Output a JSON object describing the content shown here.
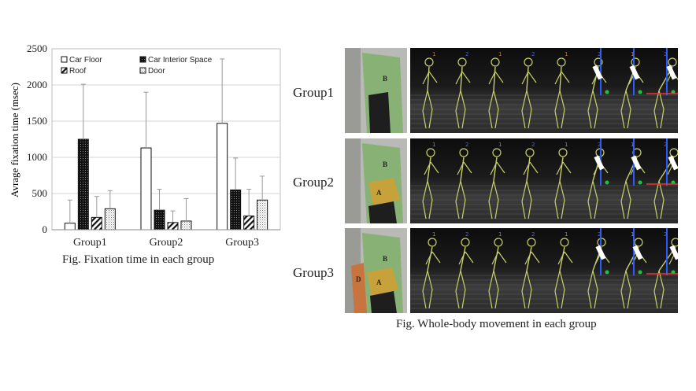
{
  "chart_data": {
    "type": "bar",
    "ylabel": "Avrage fixation time (msec)",
    "ylim": [
      0,
      2500
    ],
    "yticks": [
      0,
      500,
      1000,
      1500,
      2000,
      2500
    ],
    "categories": [
      "Group1",
      "Group2",
      "Group3"
    ],
    "series": [
      {
        "name": "Car Floor",
        "pattern": "white",
        "values": [
          90,
          1130,
          1470
        ],
        "err": [
          320,
          770,
          890
        ]
      },
      {
        "name": "Car Interior Space",
        "pattern": "dots",
        "values": [
          1250,
          270,
          550
        ],
        "err": [
          760,
          290,
          440
        ]
      },
      {
        "name": "Roof",
        "pattern": "diag",
        "values": [
          170,
          100,
          190
        ],
        "err": [
          290,
          160,
          370
        ]
      },
      {
        "name": "Door",
        "pattern": "light-dots",
        "values": [
          290,
          120,
          410
        ],
        "err": [
          250,
          310,
          330
        ]
      }
    ],
    "legend_position": "top"
  },
  "captions": {
    "chart": "Fig. Fixation time in each group",
    "movement": "Fig. Whole-body movement in each group"
  },
  "groups": [
    "Group1",
    "Group2",
    "Group3"
  ],
  "photo_letters": [
    [
      "B"
    ],
    [
      "B",
      "A"
    ],
    [
      "B",
      "A",
      "D"
    ]
  ]
}
